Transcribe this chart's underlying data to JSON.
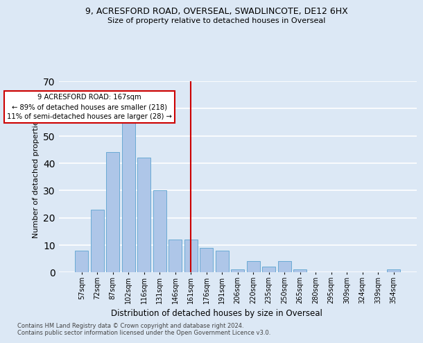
{
  "title1": "9, ACRESFORD ROAD, OVERSEAL, SWADLINCOTE, DE12 6HX",
  "title2": "Size of property relative to detached houses in Overseal",
  "xlabel": "Distribution of detached houses by size in Overseal",
  "ylabel": "Number of detached properties",
  "footer": "Contains HM Land Registry data © Crown copyright and database right 2024.\nContains public sector information licensed under the Open Government Licence v3.0.",
  "bar_labels": [
    "57sqm",
    "72sqm",
    "87sqm",
    "102sqm",
    "116sqm",
    "131sqm",
    "146sqm",
    "161sqm",
    "176sqm",
    "191sqm",
    "206sqm",
    "220sqm",
    "235sqm",
    "250sqm",
    "265sqm",
    "280sqm",
    "295sqm",
    "309sqm",
    "324sqm",
    "339sqm",
    "354sqm"
  ],
  "bar_values": [
    8,
    23,
    44,
    57,
    42,
    30,
    12,
    12,
    9,
    8,
    1,
    4,
    2,
    4,
    1,
    0,
    0,
    0,
    0,
    0,
    1
  ],
  "bar_color": "#aec6e8",
  "bar_edge_color": "#6aaad4",
  "vline_index": 7,
  "vline_color": "#cc0000",
  "annotation_line1": "9 ACRESFORD ROAD: 167sqm",
  "annotation_line2": "← 89% of detached houses are smaller (218)",
  "annotation_line3": "11% of semi-detached houses are larger (28) →",
  "annotation_box_color": "#ffffff",
  "annotation_box_edge": "#cc0000",
  "ylim": [
    0,
    70
  ],
  "yticks": [
    0,
    10,
    20,
    30,
    40,
    50,
    60,
    70
  ],
  "bg_color": "#dce8f5",
  "plot_bg_color": "#dce8f5",
  "grid_color": "#ffffff"
}
